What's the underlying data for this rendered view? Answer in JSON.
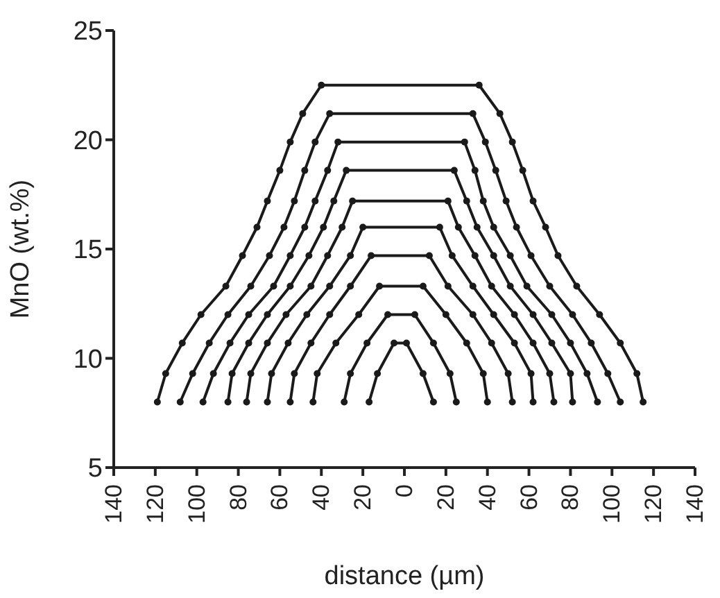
{
  "chart_data": {
    "type": "line",
    "xlabel": "distance (µm)",
    "ylabel": "MnO (wt.%)",
    "marker": "circle",
    "line_style": "solid",
    "grid": false,
    "xlim": [
      -140,
      140
    ],
    "xticks": [
      {
        "value": -140,
        "label": "140"
      },
      {
        "value": -120,
        "label": "120"
      },
      {
        "value": -100,
        "label": "100"
      },
      {
        "value": -80,
        "label": "80"
      },
      {
        "value": -60,
        "label": "60"
      },
      {
        "value": -40,
        "label": "40"
      },
      {
        "value": -20,
        "label": "20"
      },
      0,
      20,
      40,
      60,
      80,
      100,
      120,
      140
    ],
    "ylim": [
      5,
      25
    ],
    "yticks": [
      5,
      10,
      15,
      20,
      25
    ],
    "series": [
      {
        "color": "#1a1a1a",
        "x": [
          -119,
          -115,
          -107,
          -98,
          -86,
          -78,
          -71,
          -66,
          -60,
          -55,
          -49,
          -40,
          36,
          46,
          52,
          57,
          62,
          68,
          74,
          83,
          94,
          104,
          112,
          115
        ],
        "values": [
          8,
          9.3,
          10.7,
          12,
          13.3,
          14.7,
          16,
          17.2,
          18.6,
          19.9,
          21.2,
          22.5,
          22.5,
          21.2,
          19.9,
          18.6,
          17.2,
          16,
          14.7,
          13.3,
          12,
          10.7,
          9.3,
          8
        ]
      },
      {
        "color": "#1a1a1a",
        "x": [
          -108,
          -102,
          -94,
          -85,
          -74,
          -65,
          -58,
          -53,
          -48,
          -43,
          -36,
          33,
          39,
          44,
          49,
          54,
          61,
          70,
          81,
          90,
          98,
          104
        ],
        "values": [
          8,
          9.3,
          10.7,
          12,
          13.3,
          14.7,
          16,
          17.2,
          18.6,
          19.9,
          21.2,
          21.2,
          19.9,
          18.6,
          17.2,
          16,
          14.7,
          13.3,
          12,
          10.7,
          9.3,
          8
        ]
      },
      {
        "color": "#1a1a1a",
        "x": [
          -97,
          -92,
          -84,
          -75,
          -63,
          -55,
          -48,
          -43,
          -37,
          -32,
          29,
          34,
          38,
          43,
          51,
          59,
          71,
          80,
          88,
          93
        ],
        "values": [
          8,
          9.3,
          10.7,
          12,
          13.3,
          14.7,
          16,
          17.2,
          18.6,
          19.9,
          19.9,
          18.6,
          17.2,
          16,
          14.7,
          13.3,
          12,
          10.7,
          9.3,
          8
        ]
      },
      {
        "color": "#1a1a1a",
        "x": [
          -85,
          -83,
          -75,
          -66,
          -55,
          -46,
          -39,
          -34,
          -28,
          24,
          30,
          35,
          43,
          51,
          62,
          71,
          80,
          81
        ],
        "values": [
          8,
          9.3,
          10.7,
          12,
          13.3,
          14.7,
          16,
          17.2,
          18.6,
          18.6,
          17.2,
          16,
          14.7,
          13.3,
          12,
          10.7,
          9.3,
          8
        ]
      },
      {
        "color": "#1a1a1a",
        "x": [
          -76,
          -74,
          -66,
          -57,
          -45,
          -37,
          -30,
          -25,
          21,
          26,
          34,
          42,
          53,
          62,
          70,
          72
        ],
        "values": [
          8,
          9.3,
          10.7,
          12,
          13.3,
          14.7,
          16,
          17.2,
          17.2,
          16,
          14.7,
          13.3,
          12,
          10.7,
          9.3,
          8
        ]
      },
      {
        "color": "#1a1a1a",
        "x": [
          -66,
          -64,
          -56,
          -47,
          -36,
          -26,
          -20,
          17,
          23,
          33,
          43,
          53,
          61,
          62
        ],
        "values": [
          8,
          9.3,
          10.7,
          12,
          13.3,
          14.7,
          16,
          16,
          14.7,
          13.3,
          12,
          10.7,
          9.3,
          8
        ]
      },
      {
        "color": "#1a1a1a",
        "x": [
          -55,
          -53,
          -45,
          -36,
          -26,
          -16,
          12,
          21,
          33,
          42,
          50,
          52
        ],
        "values": [
          8,
          9.3,
          10.7,
          12,
          13.3,
          14.7,
          14.7,
          13.3,
          12,
          10.7,
          9.3,
          8
        ]
      },
      {
        "color": "#1a1a1a",
        "x": [
          -44,
          -42,
          -33,
          -22,
          -12,
          9,
          20,
          30,
          38,
          40
        ],
        "values": [
          8,
          9.3,
          10.7,
          12,
          13.3,
          13.3,
          12,
          10.7,
          9.3,
          8
        ]
      },
      {
        "color": "#1a1a1a",
        "x": [
          -29,
          -26,
          -18,
          -8,
          5,
          14,
          22,
          25
        ],
        "values": [
          8,
          9.3,
          10.7,
          12,
          12,
          10.7,
          9.3,
          8
        ]
      },
      {
        "color": "#1a1a1a",
        "x": [
          -17,
          -13,
          -5,
          1,
          9,
          14
        ],
        "values": [
          8,
          9.3,
          10.7,
          10.7,
          9.3,
          8
        ]
      }
    ]
  }
}
